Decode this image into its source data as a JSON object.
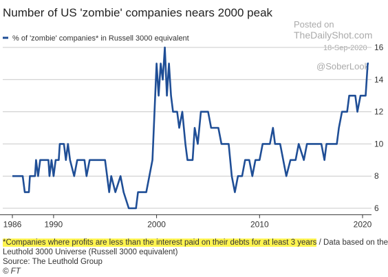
{
  "chart_data": {
    "type": "line",
    "title": "Number of US 'zombie' companies nears 2000 peak",
    "watermark": [
      "Posted on",
      "TheDailyShot.com",
      "18-Sep-2020",
      "@SoberLook"
    ],
    "footnote_highlight": "*Companies where profits are less than the interest paid on their debts for at least 3 years",
    "footnote_rest": " / Data based on the Leuthold 3000 Universe (Russell 3000 equivalent)",
    "source": "Source: The Leuthold Group",
    "credit": "© FT",
    "x": [
      1986.0,
      1987.0,
      1987.2,
      1987.6,
      1987.7,
      1988.2,
      1988.3,
      1988.5,
      1988.7,
      1989.5,
      1989.6,
      1989.8,
      1990.0,
      1990.2,
      1990.5,
      1990.6,
      1991.0,
      1991.2,
      1991.4,
      1991.6,
      1992.0,
      1992.3,
      1993.0,
      1993.2,
      1993.5,
      1995.0,
      1995.2,
      1995.4,
      1995.6,
      1996.0,
      1996.5,
      1996.8,
      1997.3,
      1998.0,
      1998.2,
      1999.0,
      1999.3,
      1999.6,
      1999.8,
      2000.0,
      2000.2,
      2000.4,
      2000.6,
      2000.8,
      2001.0,
      2001.2,
      2001.4,
      2001.6,
      2002.0,
      2002.2,
      2002.5,
      2002.8,
      2003.0,
      2003.5,
      2003.7,
      2004.0,
      2004.3,
      2005.0,
      2005.3,
      2006.0,
      2006.3,
      2007.0,
      2007.3,
      2007.6,
      2007.9,
      2008.3,
      2008.6,
      2009.0,
      2009.3,
      2009.6,
      2010.0,
      2010.3,
      2011.0,
      2011.3,
      2011.5,
      2012.0,
      2012.3,
      2012.6,
      2013.0,
      2013.5,
      2013.8,
      2014.3,
      2014.6,
      2016.0,
      2016.3,
      2016.5,
      2017.5,
      2017.7,
      2018.0,
      2018.5,
      2018.7,
      2019.3,
      2019.5,
      2019.8,
      2020.3,
      2020.5,
      2020.6
    ],
    "series": [
      {
        "name": "% of 'zombie' companies* in Russell 3000 equivalent",
        "color": "#1f4e96",
        "values": [
          8,
          8,
          7,
          7,
          8,
          8,
          9,
          8,
          9,
          9,
          8,
          9,
          8,
          9,
          9,
          10,
          10,
          9,
          10,
          9,
          8,
          9,
          9,
          8,
          9,
          9,
          8,
          7,
          8,
          7,
          8,
          7,
          6,
          6,
          7,
          7,
          8,
          9,
          12,
          15,
          13,
          15,
          14,
          16,
          13,
          15,
          13,
          12,
          12,
          11,
          12,
          10,
          9,
          9,
          11,
          10,
          12,
          12,
          11,
          11,
          10,
          10,
          8,
          7,
          8,
          8,
          9,
          9,
          8,
          9,
          9,
          10,
          10,
          11,
          10,
          10,
          9,
          8,
          9,
          9,
          10,
          9,
          10,
          10,
          9,
          10,
          10,
          11,
          12,
          12,
          13,
          13,
          12,
          13,
          13,
          15,
          15
        ]
      }
    ],
    "xlim": [
      1986,
      2020.6
    ],
    "xticks": [
      1986,
      1990,
      2000,
      2010,
      2020
    ],
    "ylim": [
      5.6,
      16.4
    ],
    "yticks": [
      6,
      8,
      10,
      12,
      14,
      16
    ],
    "grid": true
  }
}
